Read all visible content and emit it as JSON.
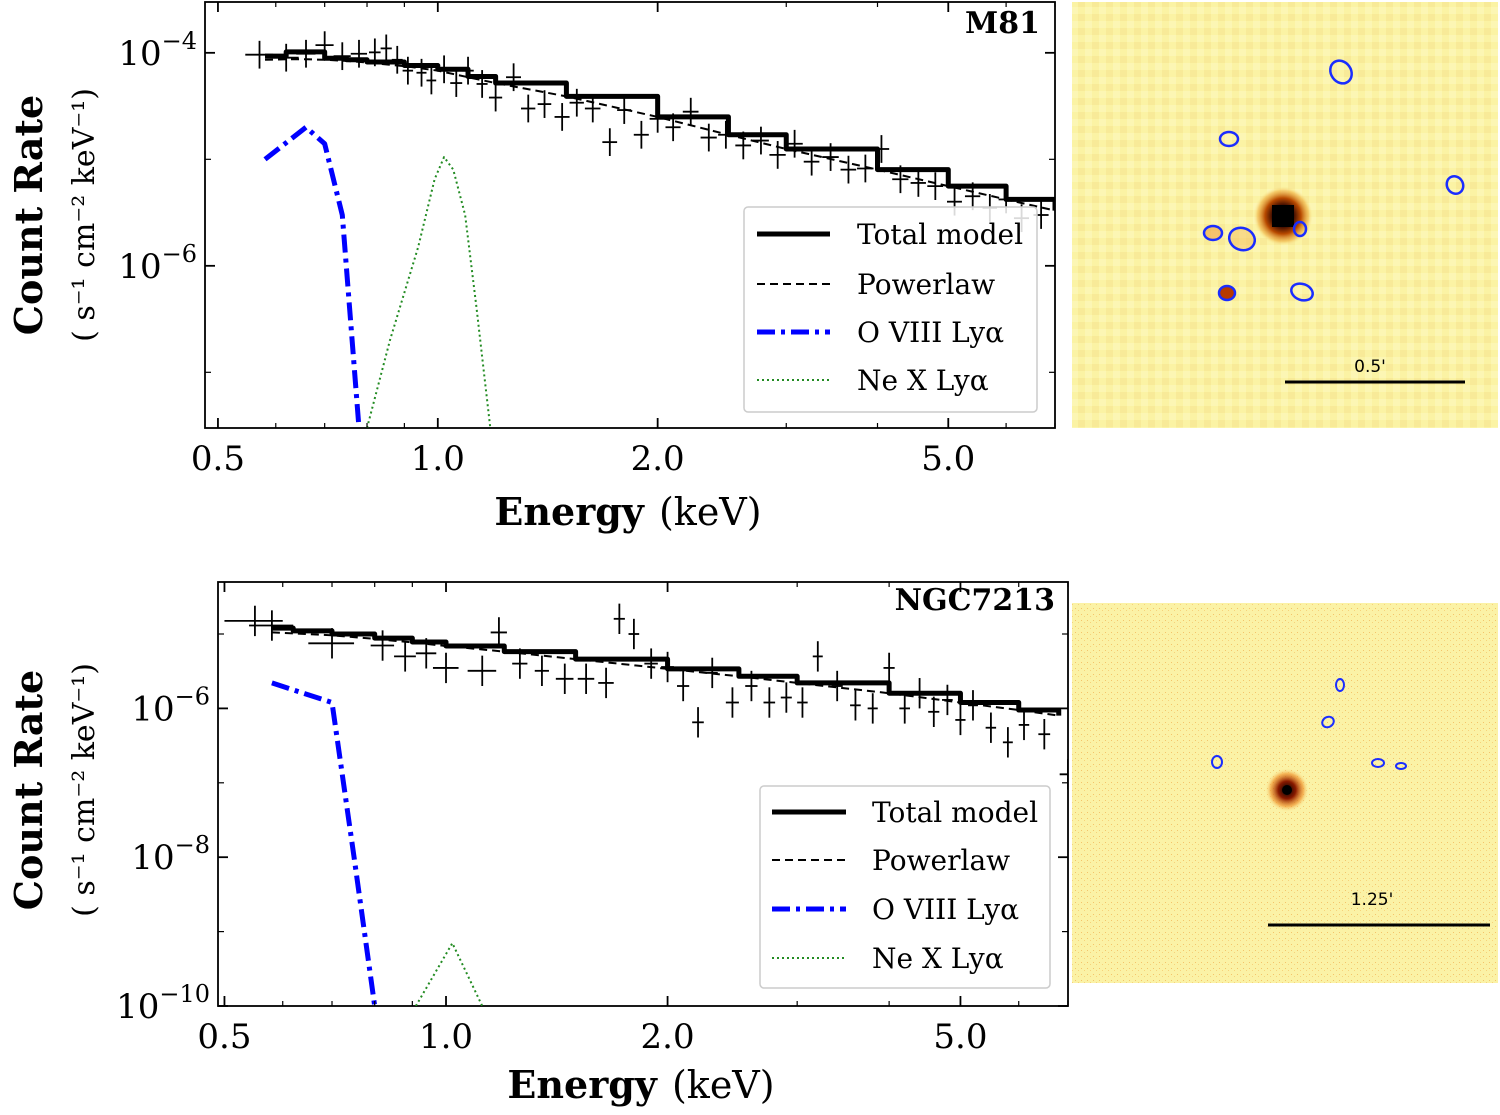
{
  "colors": {
    "model": "#000000",
    "powerlaw": "#000000",
    "oviii": "#0000ff",
    "nex": "#228b22",
    "data": "#000000",
    "image_bg": "#fbf3a4",
    "region": "#1a2dff"
  },
  "chart_data": [
    {
      "type": "line",
      "title": "M81",
      "xlabel": "Energy",
      "xlabel_unit": "(keV)",
      "ylabel": "Count Rate",
      "ylabel_unit": "( s⁻¹ cm⁻² keV⁻¹)",
      "xscale": "log",
      "yscale": "log",
      "xlim": [
        0.48,
        7.0
      ],
      "ylim": [
        3e-08,
        0.0003
      ],
      "xticks": [
        0.5,
        1.0,
        2.0,
        5.0
      ],
      "xtick_labels": [
        "0.5",
        "1.0",
        "2.0",
        "5.0"
      ],
      "yticks": [
        0.0001,
        1e-06
      ],
      "ytick_labels": [
        {
          "base": "10",
          "exp": "−4"
        },
        {
          "base": "10",
          "exp": "−6"
        }
      ],
      "legend": {
        "placement": "lower-right",
        "entries": [
          "Total model",
          "Powerlaw",
          "O VIII Lyα",
          "Ne X Lyα"
        ]
      },
      "series": [
        {
          "name": "Total model",
          "style": "solid",
          "x": [
            0.58,
            0.62,
            0.66,
            0.7,
            0.75,
            0.8,
            0.9,
            1.0,
            1.1,
            1.2,
            1.5,
            2.0,
            2.5,
            3.0,
            4.0,
            5.0,
            6.0,
            7.0
          ],
          "y": [
            9.3e-05,
            0.000102,
            0.000102,
            8.9e-05,
            8.6e-05,
            8.2e-05,
            7.6e-05,
            7e-05,
            6e-05,
            5.2e-05,
            3.9e-05,
            2.5e-05,
            1.7e-05,
            1.25e-05,
            8e-06,
            5.6e-06,
            4.2e-06,
            3.3e-06
          ]
        },
        {
          "name": "Powerlaw",
          "style": "dashed",
          "x": [
            0.58,
            0.62,
            0.66,
            0.7,
            0.75,
            0.8,
            0.9,
            1.0,
            1.1,
            1.2,
            1.5,
            2.0,
            2.5,
            3.0,
            4.0,
            5.0,
            6.0,
            7.0
          ],
          "y": [
            8.6e-05,
            8.7e-05,
            8.7e-05,
            8.6e-05,
            8.4e-05,
            8.1e-05,
            7.5e-05,
            6.8e-05,
            5.9e-05,
            5.2e-05,
            3.9e-05,
            2.5e-05,
            1.7e-05,
            1.25e-05,
            8e-06,
            5.6e-06,
            4.2e-06,
            3.3e-06
          ]
        },
        {
          "name": "O VIII Lyα",
          "style": "dashdot",
          "x": [
            0.58,
            0.66,
            0.7,
            0.74,
            0.78
          ],
          "y": [
            1e-05,
            2e-05,
            1.4e-05,
            3e-06,
            3e-08
          ]
        },
        {
          "name": "Ne X Lyα",
          "style": "dotted",
          "x": [
            0.8,
            0.86,
            0.94,
            0.99,
            1.02,
            1.05,
            1.09,
            1.13,
            1.18
          ],
          "y": [
            3e-08,
            2e-07,
            1.5e-06,
            6.5e-06,
            1.05e-05,
            8e-06,
            3e-06,
            4e-07,
            3e-08
          ]
        },
        {
          "name": "Data",
          "style": "errorbar",
          "x": [
            0.57,
            0.62,
            0.66,
            0.7,
            0.74,
            0.78,
            0.82,
            0.85,
            0.88,
            0.91,
            0.95,
            0.98,
            1.02,
            1.06,
            1.1,
            1.15,
            1.2,
            1.27,
            1.33,
            1.4,
            1.48,
            1.55,
            1.63,
            1.72,
            1.8,
            1.9,
            2.0,
            2.1,
            2.22,
            2.35,
            2.48,
            2.62,
            2.77,
            2.92,
            3.08,
            3.25,
            3.45,
            3.65,
            3.85,
            4.05,
            4.3,
            4.55,
            4.8,
            5.1,
            5.4,
            5.7,
            6.0,
            6.3,
            6.7
          ],
          "y": [
            9.6e-05,
            9e-05,
            9.8e-05,
            0.000118,
            9.3e-05,
            9.8e-05,
            0.000101,
            0.00011,
            8.6e-05,
            6.8e-05,
            6.5e-05,
            5.5e-05,
            7e-05,
            5.2e-05,
            6.8e-05,
            5.1e-05,
            3.8e-05,
            5.9e-05,
            3e-05,
            3.3e-05,
            2.5e-05,
            3.4e-05,
            3e-05,
            1.45e-05,
            2.9e-05,
            1.7e-05,
            2.4e-05,
            2e-05,
            2.8e-05,
            1.6e-05,
            1.7e-05,
            1.35e-05,
            1.5e-05,
            1.1e-05,
            1.4e-05,
            9.5e-06,
            1.05e-05,
            8e-06,
            8.2e-06,
            1.25e-05,
            6.5e-06,
            6e-06,
            5.6e-06,
            4e-06,
            4.5e-06,
            3.5e-06,
            4.2e-06,
            2.8e-06,
            3e-06
          ],
          "xerr": [
            0.025,
            0.025,
            0.02,
            0.02,
            0.02,
            0.02,
            0.015,
            0.015,
            0.015,
            0.015,
            0.015,
            0.015,
            0.02,
            0.02,
            0.02,
            0.02,
            0.025,
            0.03,
            0.03,
            0.03,
            0.035,
            0.035,
            0.04,
            0.04,
            0.04,
            0.045,
            0.05,
            0.05,
            0.055,
            0.06,
            0.06,
            0.065,
            0.07,
            0.075,
            0.08,
            0.08,
            0.09,
            0.09,
            0.1,
            0.1,
            0.11,
            0.11,
            0.12,
            0.12,
            0.13,
            0.13,
            0.14,
            0.15,
            0.16
          ],
          "yerr_frac": 0.35
        }
      ]
    },
    {
      "type": "line",
      "title": "NGC7213",
      "xlabel": "Energy",
      "xlabel_unit": "(keV)",
      "ylabel": "Count Rate",
      "ylabel_unit": "( s⁻¹ cm⁻² keV⁻¹)",
      "xscale": "log",
      "yscale": "log",
      "xlim": [
        0.49,
        7.0
      ],
      "ylim": [
        1e-10,
        5e-05
      ],
      "xticks": [
        0.5,
        1.0,
        2.0,
        5.0
      ],
      "xtick_labels": [
        "0.5",
        "1.0",
        "2.0",
        "5.0"
      ],
      "yticks": [
        1e-06,
        1e-08,
        1e-10
      ],
      "ytick_labels": [
        {
          "base": "10",
          "exp": "−6"
        },
        {
          "base": "10",
          "exp": "−8"
        },
        {
          "base": "10",
          "exp": "−10"
        }
      ],
      "legend": {
        "placement": "lower-right",
        "entries": [
          "Total model",
          "Powerlaw",
          "O VIII Lyα",
          "Ne X Lyα"
        ]
      },
      "series": [
        {
          "name": "Total model",
          "style": "solid",
          "x": [
            0.58,
            0.62,
            0.7,
            0.8,
            0.9,
            1.0,
            1.2,
            1.5,
            2.0,
            2.5,
            3.0,
            4.0,
            5.0,
            6.0,
            6.8
          ],
          "y": [
            1.2e-05,
            1.1e-05,
            1e-05,
            8.8e-06,
            7.8e-06,
            6.9e-06,
            5.8e-06,
            4.6e-06,
            3.4e-06,
            2.7e-06,
            2.2e-06,
            1.6e-06,
            1.2e-06,
            9.5e-07,
            8e-07
          ]
        },
        {
          "name": "Powerlaw",
          "style": "dashed",
          "x": [
            0.58,
            0.62,
            0.7,
            0.8,
            0.9,
            1.0,
            1.2,
            1.5,
            2.0,
            2.5,
            3.0,
            4.0,
            5.0,
            6.0,
            6.8
          ],
          "y": [
            1.05e-05,
            1.02e-05,
            9.6e-06,
            8.6e-06,
            7.7e-06,
            6.9e-06,
            5.8e-06,
            4.6e-06,
            3.4e-06,
            2.7e-06,
            2.2e-06,
            1.6e-06,
            1.2e-06,
            9.5e-07,
            8e-07
          ]
        },
        {
          "name": "O VIII Lyα",
          "style": "dashdot",
          "x": [
            0.58,
            0.7,
            0.75,
            0.8
          ],
          "y": [
            2.2e-06,
            1.2e-06,
            1e-08,
            1e-10
          ]
        },
        {
          "name": "Ne X Lyα",
          "style": "dotted",
          "x": [
            0.91,
            1.02,
            1.12
          ],
          "y": [
            1e-10,
            7e-10,
            1e-10
          ]
        },
        {
          "name": "Data",
          "style": "errorbar",
          "x": [
            0.55,
            0.58,
            0.7,
            0.82,
            0.88,
            0.94,
            1.0,
            1.12,
            1.18,
            1.26,
            1.35,
            1.45,
            1.55,
            1.65,
            1.72,
            1.8,
            1.9,
            2.0,
            2.1,
            2.2,
            2.3,
            2.45,
            2.6,
            2.75,
            2.9,
            3.05,
            3.2,
            3.4,
            3.6,
            3.8,
            4.0,
            4.2,
            4.4,
            4.6,
            4.8,
            5.0,
            5.2,
            5.5,
            5.8,
            6.1,
            6.5,
            7.0
          ],
          "y": [
            1.5e-05,
            1.3e-05,
            7.5e-06,
            7e-06,
            5e-06,
            5.5e-06,
            3.5e-06,
            3.2e-06,
            1.05e-05,
            4e-06,
            3.2e-06,
            2.5e-06,
            2.5e-06,
            2.2e-06,
            1.6e-05,
            1e-05,
            4e-06,
            3.6e-06,
            2e-06,
            6.5e-07,
            3e-06,
            1.2e-06,
            2e-06,
            1.2e-06,
            1.4e-06,
            1.2e-06,
            5e-06,
            2e-06,
            1.1e-06,
            1e-06,
            3.5e-06,
            1e-06,
            1.6e-06,
            9e-07,
            1.3e-06,
            7e-07,
            1.1e-06,
            5.5e-07,
            3.5e-07,
            6e-07,
            4.5e-07,
            1.3e-07
          ],
          "xerr": [
            0.05,
            0.04,
            0.05,
            0.03,
            0.03,
            0.03,
            0.04,
            0.05,
            0.03,
            0.03,
            0.03,
            0.04,
            0.04,
            0.04,
            0.03,
            0.03,
            0.04,
            0.04,
            0.04,
            0.04,
            0.04,
            0.05,
            0.05,
            0.05,
            0.05,
            0.05,
            0.05,
            0.06,
            0.06,
            0.06,
            0.07,
            0.07,
            0.07,
            0.08,
            0.08,
            0.08,
            0.08,
            0.09,
            0.09,
            0.1,
            0.12,
            0.18
          ],
          "yerr_frac": 0.6
        }
      ]
    }
  ],
  "images": [
    {
      "scale_label": "0.5'"
    },
    {
      "scale_label": "1.25'"
    }
  ]
}
